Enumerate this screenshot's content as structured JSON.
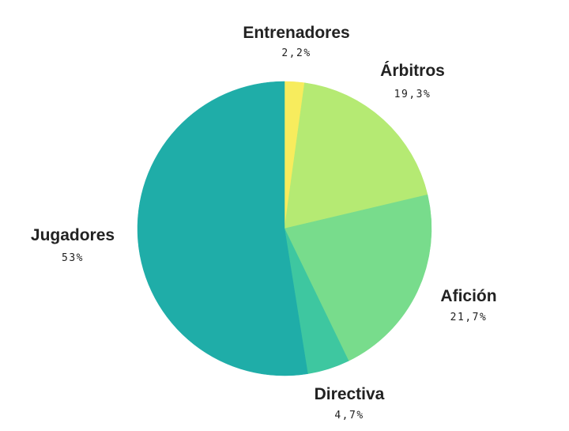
{
  "chart_data": {
    "type": "pie",
    "title": "",
    "start_angle_deg": 0,
    "direction": "clockwise",
    "legend": "none",
    "slices": [
      {
        "label": "Entrenadores",
        "value": 2.2,
        "display": "2,2%",
        "color": "#f7ec5d"
      },
      {
        "label": "Árbitros",
        "value": 19.3,
        "display": "19,3%",
        "color": "#b5ea73"
      },
      {
        "label": "Afición",
        "value": 21.7,
        "display": "21,7%",
        "color": "#78dc8c"
      },
      {
        "label": "Directiva",
        "value": 4.7,
        "display": "4,7%",
        "color": "#3ec7a0"
      },
      {
        "label": "Jugadores",
        "value": 53,
        "display": "53%",
        "color": "#1fada8"
      }
    ]
  }
}
